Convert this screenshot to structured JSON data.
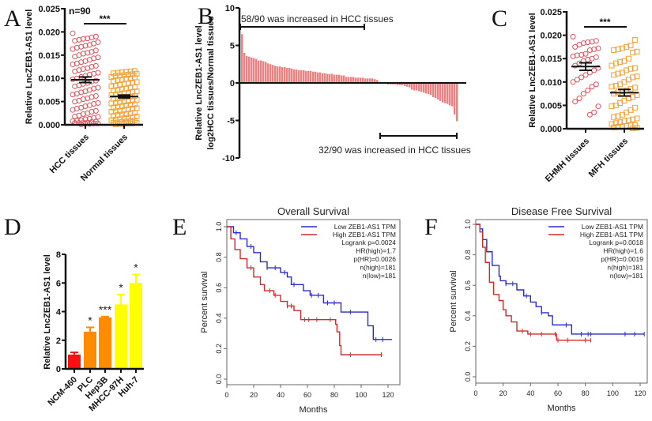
{
  "panel_letters": [
    "A",
    "B",
    "C",
    "D",
    "E",
    "F"
  ],
  "chart_data": [
    {
      "panel": "A",
      "type": "scatter",
      "ylabel": "Relative LncZEB1-AS1 level",
      "ylim": [
        0,
        0.025
      ],
      "yticks": [
        "0.000",
        "0.005",
        "0.010",
        "0.015",
        "0.020",
        "0.025"
      ],
      "categories": [
        "HCC tissues",
        "Normal tissues"
      ],
      "annotation": "n=90",
      "significance": "***",
      "colors": [
        "#e0505a",
        "#f5a030"
      ],
      "series": [
        {
          "mean": 0.0097,
          "sem": 0.0006,
          "marker": "circle",
          "values": [
            0.0197,
            0.019,
            0.0188,
            0.0186,
            0.0185,
            0.0183,
            0.0181,
            0.0178,
            0.0175,
            0.0172,
            0.017,
            0.0168,
            0.0166,
            0.0163,
            0.016,
            0.0157,
            0.0155,
            0.0153,
            0.015,
            0.0147,
            0.0145,
            0.0143,
            0.014,
            0.0137,
            0.0135,
            0.0132,
            0.013,
            0.0127,
            0.0125,
            0.0122,
            0.012,
            0.0118,
            0.0115,
            0.0112,
            0.011,
            0.0108,
            0.0105,
            0.0103,
            0.01,
            0.0098,
            0.0095,
            0.0093,
            0.009,
            0.0088,
            0.0085,
            0.0083,
            0.008,
            0.0078,
            0.0075,
            0.0072,
            0.007,
            0.0067,
            0.0065,
            0.0062,
            0.006,
            0.0057,
            0.0055,
            0.0052,
            0.005,
            0.0047,
            0.0045,
            0.0042,
            0.004,
            0.0037,
            0.0035,
            0.0032,
            0.003,
            0.0028,
            0.0025,
            0.0023,
            0.002,
            0.0018,
            0.0017,
            0.0015,
            0.0013,
            0.0012,
            0.001,
            0.0009,
            0.0008,
            0.0007,
            0.0006,
            0.0005,
            0.0005,
            0.0004,
            0.0004,
            0.0003,
            0.0003,
            0.0002,
            0.0002,
            0.0001
          ]
        },
        {
          "mean": 0.0061,
          "sem": 0.0003,
          "marker": "square",
          "values": [
            0.0116,
            0.0115,
            0.0114,
            0.0113,
            0.0112,
            0.0111,
            0.011,
            0.0109,
            0.0108,
            0.0107,
            0.0106,
            0.0105,
            0.0103,
            0.0102,
            0.01,
            0.0099,
            0.0097,
            0.0096,
            0.0094,
            0.0092,
            0.0091,
            0.0089,
            0.0088,
            0.0086,
            0.0084,
            0.0083,
            0.0081,
            0.008,
            0.0078,
            0.0077,
            0.0075,
            0.0074,
            0.0072,
            0.0071,
            0.0069,
            0.0068,
            0.0066,
            0.0065,
            0.0064,
            0.0062,
            0.0061,
            0.006,
            0.0058,
            0.0057,
            0.0056,
            0.0054,
            0.0053,
            0.0051,
            0.005,
            0.0049,
            0.0047,
            0.0046,
            0.0044,
            0.0043,
            0.0042,
            0.004,
            0.0039,
            0.0037,
            0.0036,
            0.0035,
            0.0033,
            0.0032,
            0.003,
            0.0029,
            0.0028,
            0.0026,
            0.0025,
            0.0023,
            0.0022,
            0.0021,
            0.0019,
            0.0018,
            0.0016,
            0.0015,
            0.0014,
            0.0012,
            0.0011,
            0.001,
            0.0009,
            0.0008,
            0.0007,
            0.0006,
            0.0005,
            0.0004,
            0.0004,
            0.0003,
            0.0003,
            0.0002,
            0.0002,
            0.0001
          ]
        }
      ]
    },
    {
      "panel": "B",
      "type": "bar",
      "ylabel": [
        "Relative LncZEB1-AS1 level",
        "log2HCC tissues/Normal tissues"
      ],
      "ylim": [
        -10,
        10
      ],
      "yticks": [
        "10",
        "5",
        "0",
        "-5",
        "-10"
      ],
      "color": "#f08080",
      "annotations": [
        "58/90 was increased in HCC tissues",
        "32/90 was increased in HCC tissues"
      ],
      "values": [
        6.5,
        4.0,
        3.6,
        3.5,
        3.4,
        3.3,
        3.2,
        3.0,
        3.0,
        2.9,
        2.8,
        2.6,
        2.5,
        2.4,
        2.3,
        2.2,
        2.2,
        2.1,
        2.1,
        2.0,
        2.0,
        1.9,
        1.8,
        1.8,
        1.7,
        1.7,
        1.7,
        1.6,
        1.6,
        1.6,
        1.5,
        1.5,
        1.4,
        1.4,
        1.3,
        1.3,
        1.2,
        1.2,
        1.2,
        1.1,
        1.1,
        1.1,
        1.0,
        1.0,
        0.8,
        0.8,
        0.8,
        0.8,
        0.7,
        0.7,
        0.7,
        0.7,
        0.6,
        0.6,
        0.6,
        0.6,
        0.5,
        0.4,
        -0.1,
        -0.1,
        -0.2,
        -0.2,
        -0.2,
        -0.2,
        -0.3,
        -0.3,
        -0.3,
        -0.4,
        -0.5,
        -0.6,
        -0.9,
        -1.0,
        -1.0,
        -1.1,
        -1.2,
        -1.3,
        -1.4,
        -1.5,
        -1.6,
        -1.9,
        -2.0,
        -2.2,
        -2.4,
        -2.6,
        -2.7,
        -2.8,
        -3.0,
        -3.1,
        -4.2,
        -5.1
      ]
    },
    {
      "panel": "C",
      "type": "scatter",
      "ylabel": "Relative LncZEB1-AS1 level",
      "ylim": [
        0,
        0.025
      ],
      "yticks": [
        "0.000",
        "0.005",
        "0.010",
        "0.015",
        "0.020",
        "0.025"
      ],
      "categories": [
        "EHMH tissues",
        "MFH tissues"
      ],
      "significance": "***",
      "colors": [
        "#e0505a",
        "#f5a030"
      ],
      "series": [
        {
          "mean": 0.0133,
          "sem": 0.0008,
          "marker": "circle",
          "values": [
            0.0197,
            0.0188,
            0.0186,
            0.0185,
            0.0183,
            0.018,
            0.0175,
            0.0172,
            0.017,
            0.0168,
            0.016,
            0.0158,
            0.0157,
            0.0155,
            0.0153,
            0.015,
            0.0148,
            0.0145,
            0.014,
            0.0135,
            0.013,
            0.0125,
            0.012,
            0.0115,
            0.011,
            0.0105,
            0.01,
            0.0095,
            0.009,
            0.0082,
            0.0075,
            0.0065,
            0.0058,
            0.0048,
            0.0035,
            0.003
          ]
        },
        {
          "mean": 0.0077,
          "sem": 0.0007,
          "marker": "square",
          "values": [
            0.019,
            0.0178,
            0.0175,
            0.0172,
            0.017,
            0.0168,
            0.0165,
            0.0163,
            0.015,
            0.0145,
            0.0143,
            0.014,
            0.0135,
            0.013,
            0.0128,
            0.0125,
            0.012,
            0.0118,
            0.0115,
            0.0112,
            0.011,
            0.0105,
            0.01,
            0.0095,
            0.0092,
            0.009,
            0.0088,
            0.0085,
            0.0082,
            0.008,
            0.0078,
            0.0075,
            0.0072,
            0.0068,
            0.0065,
            0.006,
            0.0055,
            0.005,
            0.0048,
            0.0045,
            0.004,
            0.0035,
            0.003,
            0.0027,
            0.0025,
            0.0022,
            0.002,
            0.0018,
            0.0016,
            0.0014,
            0.0012,
            0.001,
            0.0008,
            0.0007,
            0.0006,
            0.0005,
            0.0004,
            0.0003,
            0.0002,
            0.0001
          ]
        }
      ]
    },
    {
      "panel": "D",
      "type": "bar",
      "ylabel": "Relative LncZEB1-AS1 level",
      "ylim": [
        0,
        8
      ],
      "yticks": [
        "0",
        "2",
        "4",
        "6",
        "8"
      ],
      "categories": [
        "NCM-460",
        "PLC",
        "Hep3B",
        "MHCC-97H",
        "Huh-7"
      ],
      "values": [
        1.0,
        2.6,
        3.6,
        4.5,
        6.0
      ],
      "errors": [
        0.15,
        0.3,
        0.05,
        0.7,
        0.6
      ],
      "significance": [
        "",
        "*",
        "***",
        "*",
        "*"
      ],
      "colors": [
        "#ff1010",
        "#ff8c00",
        "#ff8c00",
        "#ffff00",
        "#ffff00"
      ]
    },
    {
      "panel": "E",
      "type": "line",
      "title": "Overall Survival",
      "xlabel": "Months",
      "ylabel": "Percent survival",
      "xlim": [
        0,
        125
      ],
      "ylim": [
        0,
        1
      ],
      "xticks": [
        "0",
        "20",
        "40",
        "60",
        "80",
        "100",
        "120"
      ],
      "yticks": [
        "0.0",
        "0.2",
        "0.4",
        "0.6",
        "0.8",
        "1.0"
      ],
      "legend": [
        "Low ZEB1-AS1 TPM",
        "High ZEB1-AS1 TPM"
      ],
      "stats": [
        "Logrank p=0.0024",
        "HR(high)=1.7",
        "p(HR)=0.0026",
        "n(high)=181",
        "n(low)=181"
      ],
      "legend_position": "top-right",
      "series": [
        {
          "name": "Low ZEB1-AS1 TPM",
          "color": "#2a2ad0",
          "steps": [
            [
              0,
              1
            ],
            [
              5,
              0.96
            ],
            [
              10,
              0.92
            ],
            [
              15,
              0.87
            ],
            [
              20,
              0.83
            ],
            [
              25,
              0.77
            ],
            [
              30,
              0.73
            ],
            [
              40,
              0.7
            ],
            [
              45,
              0.67
            ],
            [
              48,
              0.62
            ],
            [
              53,
              0.62
            ],
            [
              57,
              0.58
            ],
            [
              62,
              0.55
            ],
            [
              72,
              0.5
            ],
            [
              85,
              0.44
            ],
            [
              105,
              0.35
            ],
            [
              109,
              0.26
            ],
            [
              123,
              0.26
            ]
          ],
          "censored": [
            7,
            18,
            30,
            36,
            43,
            50,
            63,
            68,
            75,
            80,
            92,
            111,
            116
          ]
        },
        {
          "name": "High ZEB1-AS1 TPM",
          "color": "#d02a2a",
          "steps": [
            [
              0,
              1
            ],
            [
              3,
              0.92
            ],
            [
              6,
              0.85
            ],
            [
              10,
              0.79
            ],
            [
              15,
              0.73
            ],
            [
              20,
              0.67
            ],
            [
              25,
              0.62
            ],
            [
              28,
              0.58
            ],
            [
              35,
              0.55
            ],
            [
              40,
              0.51
            ],
            [
              45,
              0.48
            ],
            [
              50,
              0.45
            ],
            [
              55,
              0.39
            ],
            [
              81,
              0.36
            ],
            [
              82,
              0.31
            ],
            [
              84,
              0.22
            ],
            [
              85,
              0.16
            ],
            [
              115,
              0.16
            ]
          ],
          "censored": [
            18,
            32,
            36,
            45,
            48,
            58,
            61,
            67,
            77,
            92,
            115
          ]
        }
      ]
    },
    {
      "panel": "F",
      "type": "line",
      "title": "Disease Free Survival",
      "xlabel": "Months",
      "ylabel": "Percent survival",
      "xlim": [
        0,
        125
      ],
      "ylim": [
        0,
        1
      ],
      "xticks": [
        "0",
        "20",
        "40",
        "60",
        "80",
        "100",
        "120"
      ],
      "yticks": [
        "0.0",
        "0.2",
        "0.4",
        "0.6",
        "0.8",
        "1.0"
      ],
      "legend": [
        "Low ZEB1-AS1 TPM",
        "High ZEB1-AS1 TPM"
      ],
      "stats": [
        "Logrank p=0.0018",
        "HR(high)=1.6",
        "p(HR)=0.0019",
        "n(high)=181",
        "n(low)=181"
      ],
      "legend_position": "top-right",
      "series": [
        {
          "name": "Low ZEB1-AS1 TPM",
          "color": "#2a2ad0",
          "steps": [
            [
              0,
              1
            ],
            [
              3,
              0.97
            ],
            [
              5,
              0.9
            ],
            [
              8,
              0.82
            ],
            [
              12,
              0.73
            ],
            [
              17,
              0.66
            ],
            [
              18,
              0.63
            ],
            [
              22,
              0.61
            ],
            [
              30,
              0.57
            ],
            [
              35,
              0.53
            ],
            [
              40,
              0.49
            ],
            [
              44,
              0.46
            ],
            [
              48,
              0.42
            ],
            [
              53,
              0.4
            ],
            [
              56,
              0.34
            ],
            [
              67,
              0.34
            ],
            [
              70,
              0.28
            ],
            [
              123,
              0.28
            ]
          ],
          "censored": [
            22,
            27,
            37,
            48,
            66,
            77,
            82,
            84,
            109,
            116,
            123
          ]
        },
        {
          "name": "High ZEB1-AS1 TPM",
          "color": "#d02a2a",
          "steps": [
            [
              0,
              1
            ],
            [
              3,
              0.95
            ],
            [
              5,
              0.85
            ],
            [
              7,
              0.75
            ],
            [
              10,
              0.62
            ],
            [
              13,
              0.54
            ],
            [
              17,
              0.5
            ],
            [
              20,
              0.44
            ],
            [
              22,
              0.4
            ],
            [
              26,
              0.36
            ],
            [
              30,
              0.3
            ],
            [
              38,
              0.28
            ],
            [
              58,
              0.28
            ],
            [
              59,
              0.24
            ],
            [
              84,
              0.24
            ]
          ],
          "censored": [
            34,
            40,
            48,
            58,
            60,
            67,
            80,
            84
          ]
        }
      ]
    }
  ]
}
